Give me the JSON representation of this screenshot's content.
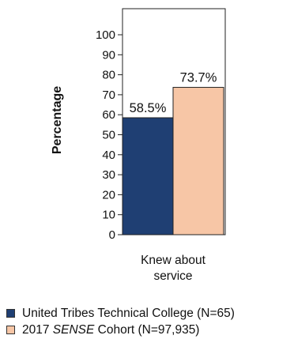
{
  "chart_data": {
    "type": "bar",
    "ylabel": "Percentage",
    "categories": [
      "Knew about service"
    ],
    "category_lines": [
      "Knew about",
      "service"
    ],
    "ylim": [
      0,
      100
    ],
    "yticks": [
      0,
      10,
      20,
      30,
      40,
      50,
      60,
      70,
      80,
      90,
      100
    ],
    "series": [
      {
        "name": "United Tribes Technical College (N=65)",
        "values": [
          58.5
        ],
        "value_labels": [
          "58.5%"
        ],
        "color": "#1f3f73"
      },
      {
        "name": "2017 SENSE Cohort (N=97,935)",
        "values": [
          73.7
        ],
        "value_labels": [
          "73.7%"
        ],
        "color": "#f7c6a6"
      }
    ],
    "legend_placement": "bottom-left",
    "grid": false
  },
  "legend": [
    {
      "prefix": "United Tribes Technical College (N=65)",
      "italic": "",
      "suffix": ""
    },
    {
      "prefix": "2017 ",
      "italic": "SENSE",
      "suffix": " Cohort (N=97,935)"
    }
  ]
}
